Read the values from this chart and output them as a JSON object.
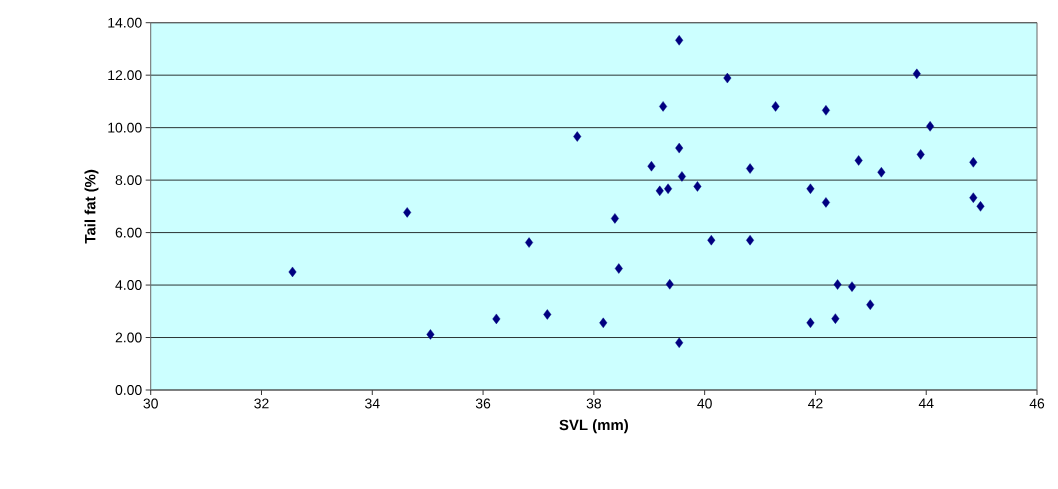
{
  "chart_data": {
    "type": "scatter",
    "xlabel": "SVL (mm)",
    "ylabel": "Tail fat (%)",
    "x": [
      32.56,
      34.63,
      35.05,
      36.24,
      36.83,
      37.16,
      37.7,
      38.17,
      38.38,
      38.45,
      39.04,
      39.25,
      39.19,
      39.34,
      39.54,
      39.54,
      39.59,
      39.37,
      39.54,
      39.87,
      40.12,
      40.41,
      40.82,
      40.82,
      41.28,
      41.91,
      41.91,
      42.19,
      42.19,
      42.36,
      42.4,
      42.66,
      42.78,
      42.99,
      43.19,
      43.83,
      43.9,
      44.07,
      44.85,
      44.85,
      44.98
    ],
    "values": [
      4.5,
      6.77,
      2.12,
      2.71,
      5.62,
      2.88,
      9.66,
      2.56,
      6.54,
      4.63,
      8.53,
      10.81,
      7.59,
      7.67,
      13.33,
      9.22,
      8.14,
      4.03,
      1.8,
      7.76,
      5.71,
      11.89,
      8.44,
      5.71,
      10.81,
      7.67,
      2.56,
      10.66,
      7.15,
      2.72,
      4.02,
      3.94,
      8.75,
      3.25,
      8.3,
      12.05,
      8.98,
      10.05,
      8.68,
      7.33,
      7.0
    ],
    "color": "#000080",
    "marker": "diamond",
    "grid": "y",
    "xlim": [
      30,
      46
    ],
    "xticks": [
      30,
      32,
      34,
      36,
      38,
      40,
      42,
      44,
      46
    ],
    "ylim": [
      0,
      14
    ],
    "yticks": [
      {
        "value": 0,
        "label": "0.00"
      },
      {
        "value": 2,
        "label": "2.00"
      },
      {
        "value": 4,
        "label": "4.00"
      },
      {
        "value": 6,
        "label": "6.00"
      },
      {
        "value": 8,
        "label": "8.00"
      },
      {
        "value": 10,
        "label": "10.00"
      },
      {
        "value": 12,
        "label": "12.00"
      },
      {
        "value": 14,
        "label": "14.00"
      }
    ]
  }
}
